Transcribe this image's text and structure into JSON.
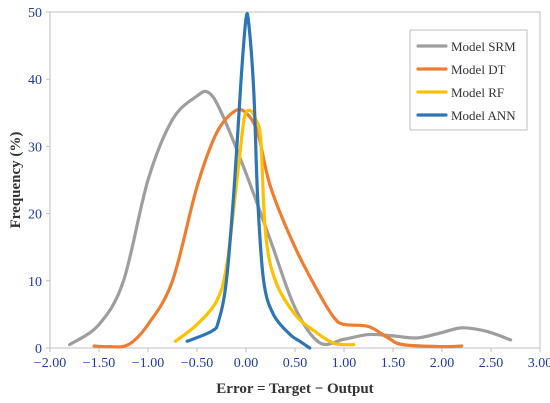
{
  "chart_data": {
    "type": "line",
    "xlabel": "Error = Target − Output",
    "ylabel": "Frequency (%)",
    "xlim": [
      -2.0,
      3.0
    ],
    "ylim": [
      0,
      50
    ],
    "x_ticks": [
      "−2.00",
      "−1.50",
      "−1.00",
      "−0.50",
      "0.00",
      "0.50",
      "1.00",
      "1.50",
      "2.00",
      "2.50",
      "3.00"
    ],
    "y_ticks": [
      "0",
      "10",
      "20",
      "30",
      "40",
      "50"
    ],
    "grid": false,
    "legend_position": "top-right",
    "series": [
      {
        "name": "Model SRM",
        "color": "#9e9e9e",
        "points": [
          [
            -1.8,
            0.5
          ],
          [
            -1.5,
            3.5
          ],
          [
            -1.25,
            10
          ],
          [
            -1.0,
            25
          ],
          [
            -0.75,
            34
          ],
          [
            -0.5,
            37.5
          ],
          [
            -0.38,
            38
          ],
          [
            -0.25,
            35
          ],
          [
            0.0,
            26
          ],
          [
            0.25,
            16
          ],
          [
            0.5,
            6
          ],
          [
            0.75,
            0.8
          ],
          [
            1.0,
            1.3
          ],
          [
            1.25,
            2
          ],
          [
            1.5,
            1.8
          ],
          [
            1.75,
            1.5
          ],
          [
            2.0,
            2.3
          ],
          [
            2.2,
            3
          ],
          [
            2.45,
            2.5
          ],
          [
            2.7,
            1.2
          ]
        ]
      },
      {
        "name": "Model DT",
        "color": "#ed7d31",
        "points": [
          [
            -1.55,
            0.3
          ],
          [
            -1.4,
            0.2
          ],
          [
            -1.2,
            0.5
          ],
          [
            -1.0,
            3.5
          ],
          [
            -0.75,
            10
          ],
          [
            -0.5,
            24
          ],
          [
            -0.3,
            32
          ],
          [
            -0.12,
            35.2
          ],
          [
            0.0,
            35
          ],
          [
            0.12,
            32
          ],
          [
            0.25,
            24
          ],
          [
            0.5,
            15
          ],
          [
            0.75,
            8
          ],
          [
            0.9,
            4.5
          ],
          [
            1.0,
            3.5
          ],
          [
            1.25,
            3.2
          ],
          [
            1.45,
            1.5
          ],
          [
            1.6,
            0.5
          ],
          [
            2.0,
            0.2
          ],
          [
            2.2,
            0.3
          ]
        ]
      },
      {
        "name": "Model RF",
        "color": "#ffc000",
        "points": [
          [
            -0.72,
            1
          ],
          [
            -0.5,
            3.5
          ],
          [
            -0.3,
            7
          ],
          [
            -0.2,
            12
          ],
          [
            -0.1,
            24
          ],
          [
            -0.03,
            33
          ],
          [
            0.0,
            35
          ],
          [
            0.05,
            35.3
          ],
          [
            0.1,
            34
          ],
          [
            0.15,
            31
          ],
          [
            0.2,
            17
          ],
          [
            0.3,
            10
          ],
          [
            0.5,
            5
          ],
          [
            0.7,
            2.5
          ],
          [
            0.9,
            0.7
          ],
          [
            1.1,
            0.5
          ]
        ]
      },
      {
        "name": "Model ANN",
        "color": "#2e75b6",
        "points": [
          [
            -0.6,
            1
          ],
          [
            -0.35,
            2.5
          ],
          [
            -0.28,
            4
          ],
          [
            -0.2,
            10
          ],
          [
            -0.12,
            24
          ],
          [
            -0.05,
            40
          ],
          [
            0.0,
            49
          ],
          [
            0.03,
            48
          ],
          [
            0.08,
            38
          ],
          [
            0.12,
            22
          ],
          [
            0.18,
            10
          ],
          [
            0.28,
            5
          ],
          [
            0.45,
            2
          ],
          [
            0.55,
            1
          ],
          [
            0.65,
            0
          ]
        ]
      }
    ]
  }
}
